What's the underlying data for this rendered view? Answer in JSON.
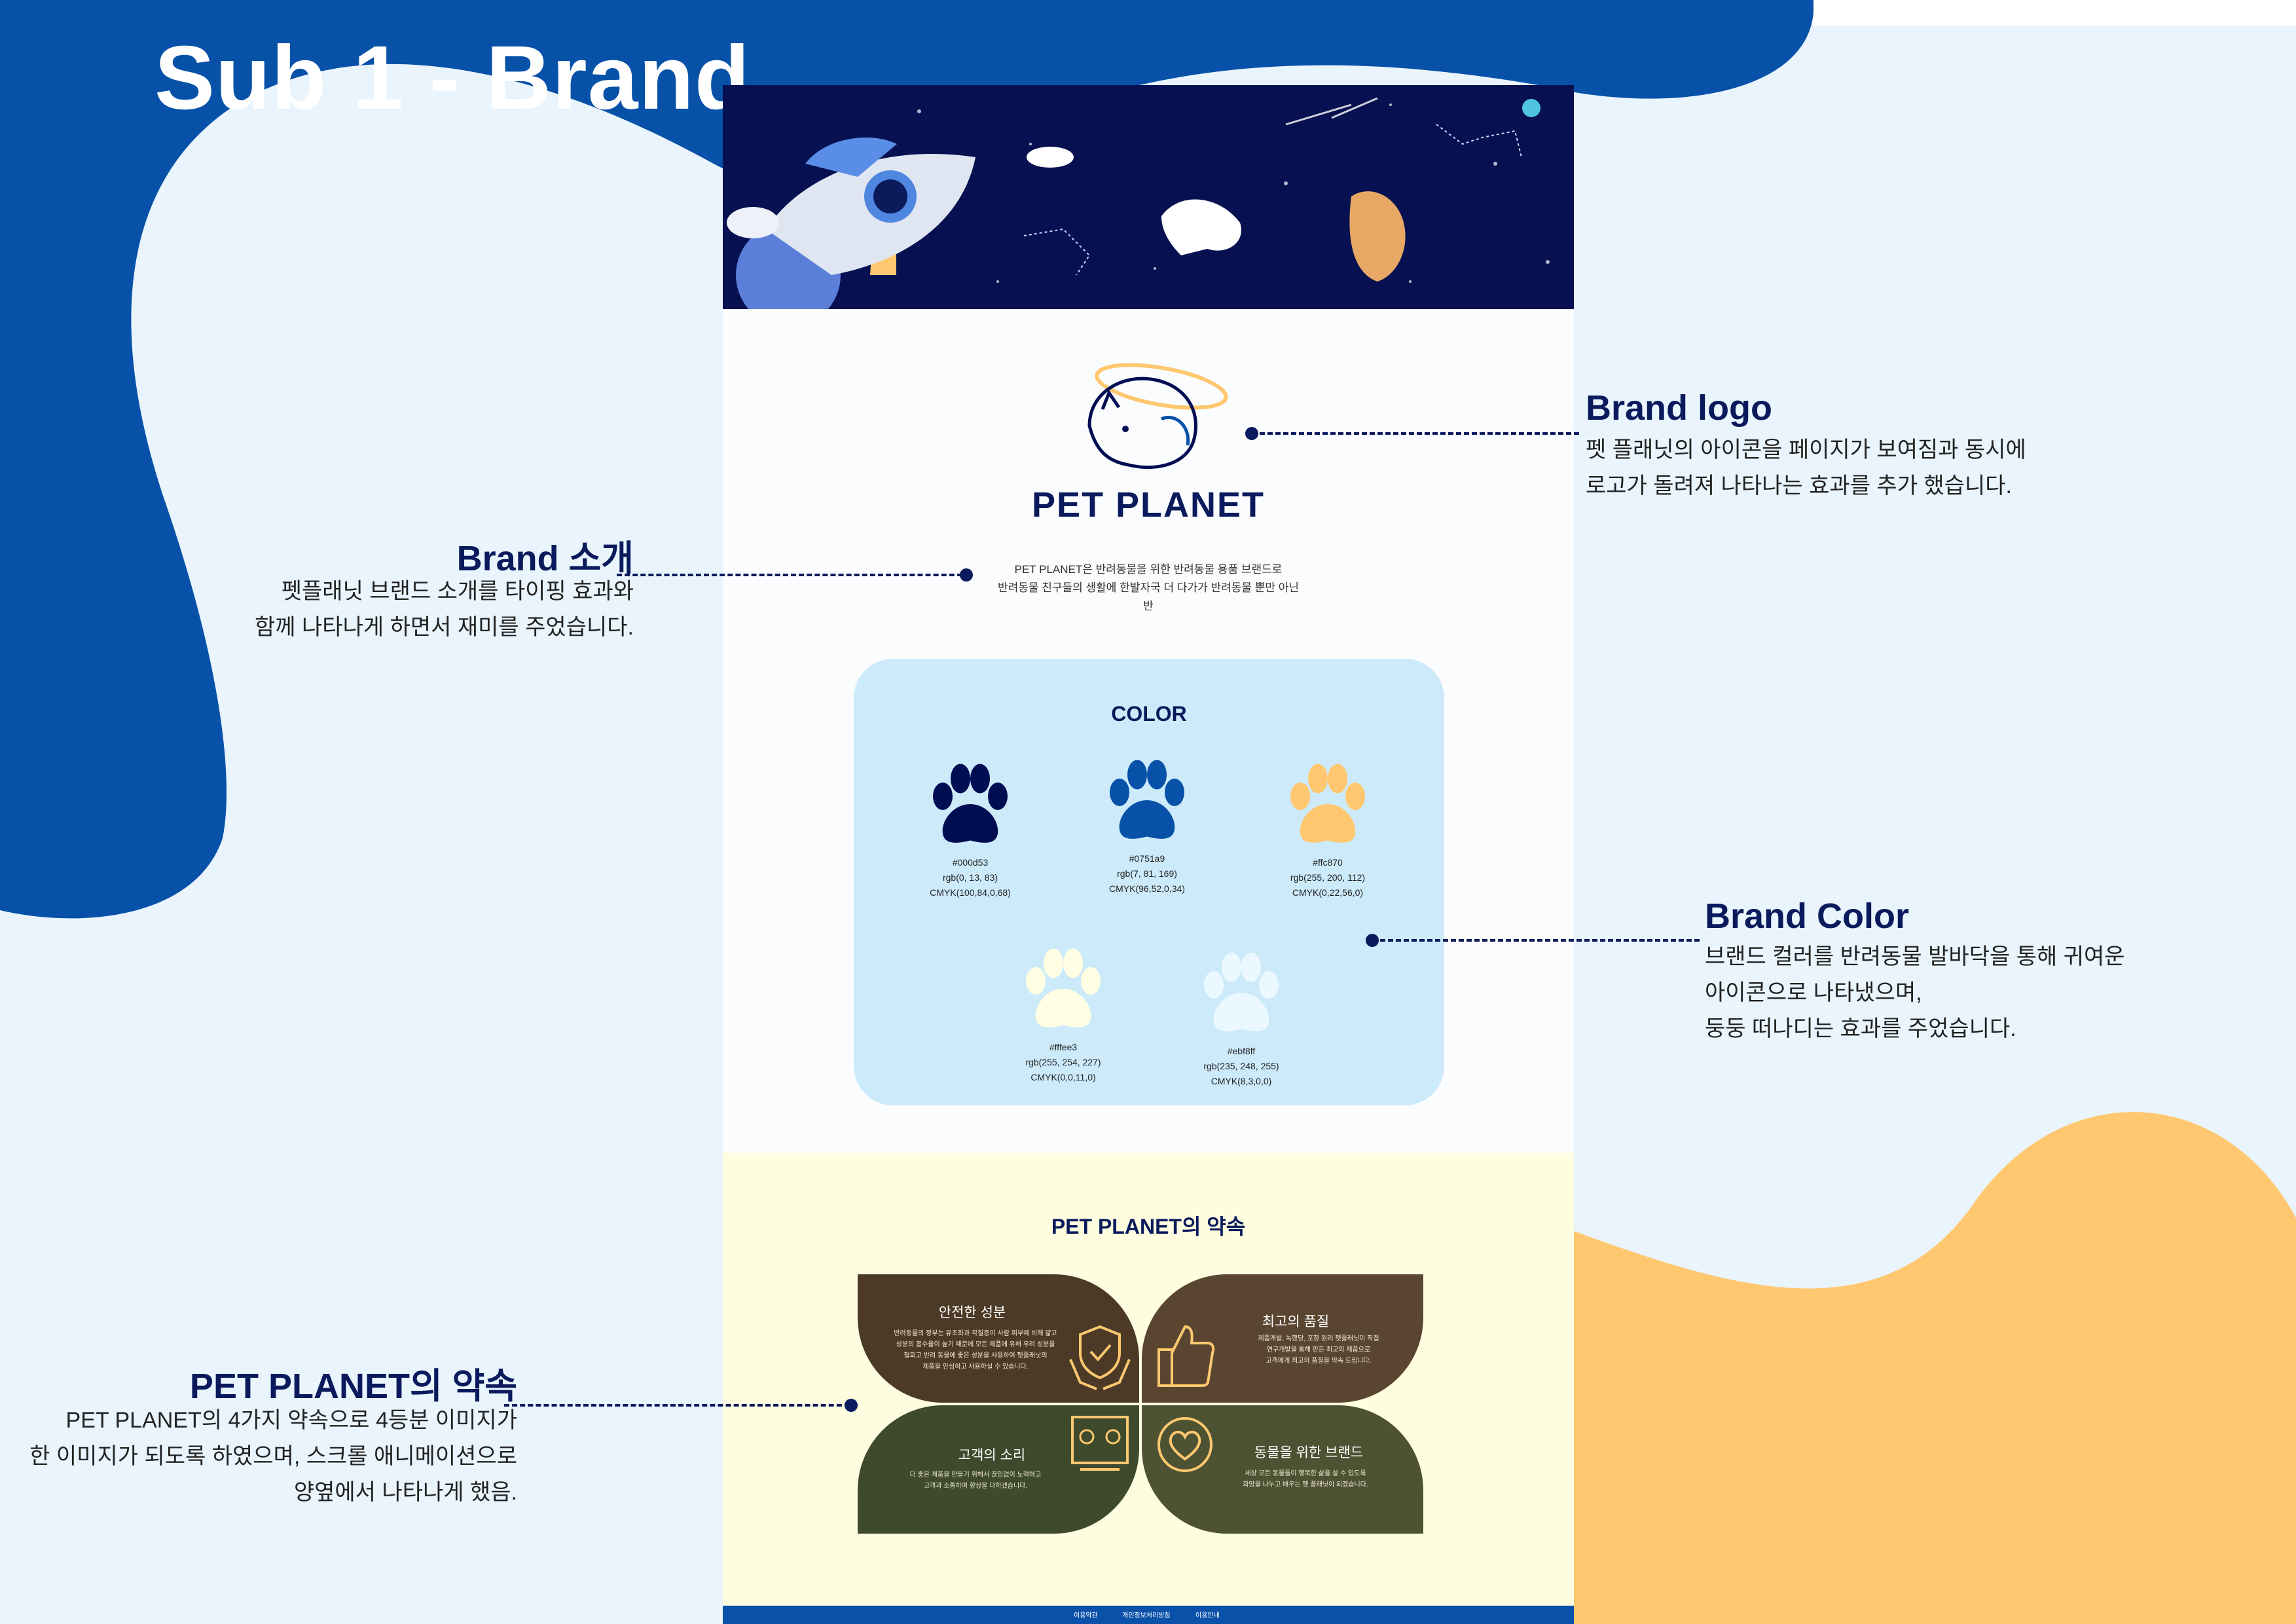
{
  "title": "Sub 1 - Brand",
  "brand_logo_text": "PET PLANET",
  "intro_lines": [
    "PET PLANET은 반려동물을 위한 반려동물 용품 브랜드로",
    "반려동물 친구들의 생활에 한발자국 더 다가가 반려동물 뿐만 아닌",
    "반"
  ],
  "color_section": {
    "title": "COLOR",
    "swatches": [
      {
        "hex": "#000d53",
        "rgb": "rgb(0, 13, 83)",
        "cmyk": "CMYK(100,84,0,68)",
        "color": "#000d53"
      },
      {
        "hex": "#0751a9",
        "rgb": "rgb(7, 81, 169)",
        "cmyk": "CMYK(96,52,0,34)",
        "color": "#0751a9"
      },
      {
        "hex": "#ffc870",
        "rgb": "rgb(255, 200, 112)",
        "cmyk": "CMYK(0,22,56,0)",
        "color": "#ffc870"
      },
      {
        "hex": "#fffee3",
        "rgb": "rgb(255, 254, 227)",
        "cmyk": "CMYK(0,0,11,0)",
        "color": "#fffee3"
      },
      {
        "hex": "#ebf8ff",
        "rgb": "rgb(235, 248, 255)",
        "cmyk": "CMYK(8,3,0,0)",
        "color": "#ebf8ff"
      }
    ]
  },
  "promise": {
    "title": "PET PLANET의 약속",
    "items": [
      {
        "title": "안전한 성분",
        "icon": "shield-hands-icon",
        "desc": [
          "반려동물의 정부는 유조화과 각질층이 사람 피부에 비해 얇고",
          "성분의 흡수율이 높기 때문에 모든 제품에 유해 우려 성분을",
          "철회고 반려 동물에 좋은 성분을 사용하여 펫플래닛의",
          "제품을 안심하고 사용하실 수 있습니다."
        ]
      },
      {
        "title": "최고의 품질",
        "icon": "thumbs-up-icon",
        "desc": [
          "제품개발, 녹했당, 포장 원리 펫플래닛이 직접",
          "연구개발을 통해 만든 최고의 제품으로",
          "고객에게 최고의 품질을 약속 드립니다."
        ]
      },
      {
        "title": "고객의 소리",
        "icon": "feedback-board-icon",
        "desc": [
          "더 좋은 제품을 만들기 위해서 끊임없이 노력하고",
          "고객과 소통하여 향상을 다하겠습니다."
        ]
      },
      {
        "title": "동물을 위한 브랜드",
        "icon": "heart-circle-icon",
        "desc": [
          "세상 모든 동물들이 행복한 삶을 살 수 있도록",
          "희망을 나누고 배우는 펫 플래닛이 되겠습니다."
        ]
      }
    ]
  },
  "footer_links": [
    "이용약관",
    "개인정보처리방침",
    "이용안내"
  ],
  "annotations": {
    "brand_logo": {
      "heading": "Brand logo",
      "lines": [
        "펫 플래닛의 아이콘을 페이지가 보여짐과 동시에",
        "로고가 돌려져 나타나는 효과를 추가 했습니다."
      ]
    },
    "brand_intro": {
      "heading": "Brand 소개",
      "lines": [
        "펫플래닛 브랜드 소개를 타이핑 효과와",
        "함께 나타나게 하면서 재미를 주었습니다."
      ]
    },
    "brand_color": {
      "heading": "Brand Color",
      "lines": [
        "브랜드 컬러를 반려동물 발바닥을 통해 귀여운",
        "아이콘으로 나타냈으며,",
        "둥둥 떠나디는 효과를 주었습니다."
      ]
    },
    "promise": {
      "heading": "PET PLANET의 약속",
      "lines": [
        "PET PLANET의 4가지 약속으로 4등분 이미지가",
        "한 이미지가 되도록 하였으며, 스크롤 애니메이션으로",
        "양옆에서 나타나게 했음."
      ]
    }
  },
  "colors": {
    "blue": "#0751a9",
    "navy": "#000d53",
    "yellow": "#ffc870",
    "light": "#e9f4fc"
  }
}
